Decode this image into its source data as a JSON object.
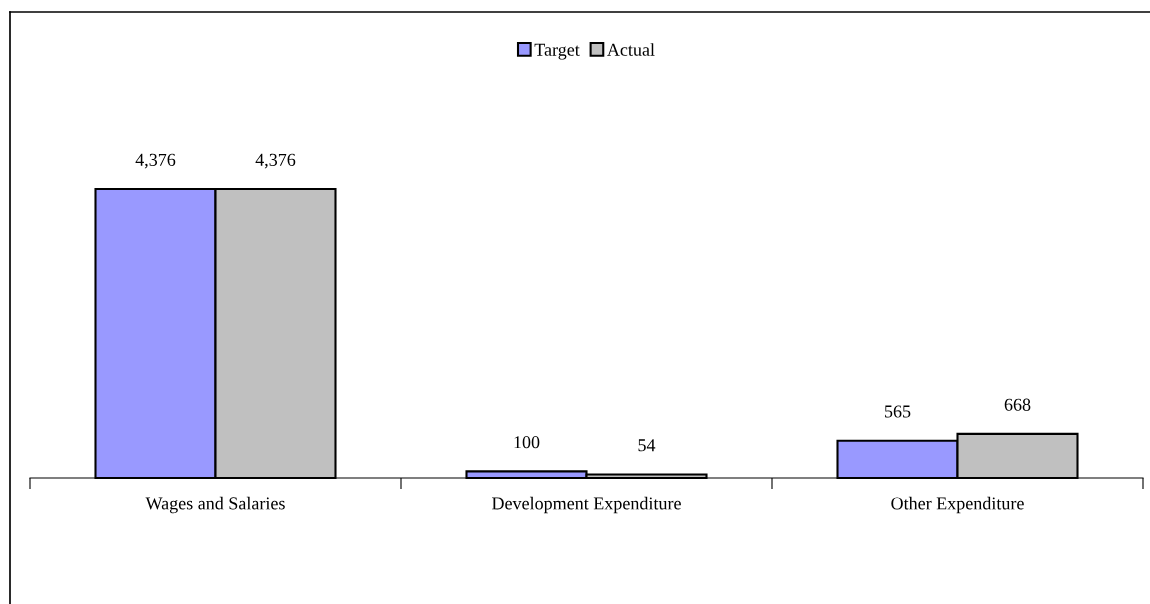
{
  "chart_data": {
    "type": "bar",
    "categories": [
      "Wages and Salaries",
      "Development Expenditure",
      "Other Expenditure"
    ],
    "series": [
      {
        "name": "Target",
        "color": "#9999ff",
        "values": [
          4376,
          100,
          565
        ],
        "value_labels": [
          "4,376",
          "100",
          "565"
        ]
      },
      {
        "name": "Actual",
        "color": "#c0c0c0",
        "values": [
          4376,
          54,
          668
        ],
        "value_labels": [
          "4,376",
          "54",
          "668"
        ]
      }
    ],
    "legend": "top",
    "grid": false
  }
}
